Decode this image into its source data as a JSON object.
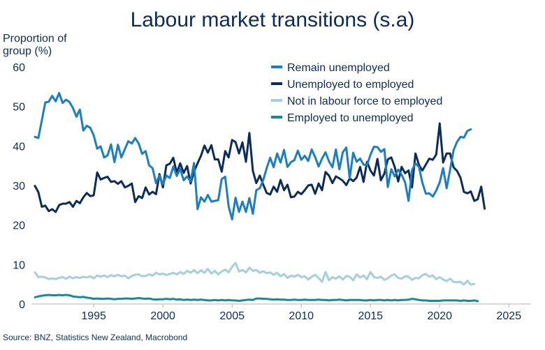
{
  "chart_data": {
    "type": "line",
    "title": "Labour market transitions (s.a)",
    "ylabel_lines": [
      "Proportion of",
      "group (%)"
    ],
    "source": "Source: BNZ, Statistics New Zealand, Macrobond",
    "xlim": [
      1990.5,
      2026.6
    ],
    "ylim": [
      0,
      60
    ],
    "yticks": [
      0,
      10,
      20,
      30,
      40,
      50,
      60
    ],
    "xticks": [
      1995,
      2000,
      2005,
      2010,
      2015,
      2020,
      2025
    ],
    "legend_position": "top-right",
    "grid": false,
    "series": [
      {
        "name": "Remain unemployed",
        "color": "#1b7ec2",
        "x_start": 1990.75,
        "x_step": 0.25,
        "values": [
          42.3,
          42.0,
          46.5,
          51.0,
          51.2,
          52.7,
          51.3,
          53.4,
          50.9,
          51.7,
          51.1,
          49.6,
          47.4,
          49.2,
          43.9,
          45.1,
          44.6,
          42.7,
          39.3,
          39.9,
          37.1,
          37.6,
          40.4,
          35.9,
          40.3,
          37.1,
          39.2,
          41.2,
          40.6,
          42.0,
          40.6,
          38.0,
          38.7,
          35.1,
          34.4,
          30.6,
          32.5,
          30.3,
          32.5,
          31.9,
          34.8,
          32.4,
          34.2,
          31.3,
          32.3,
          31.0,
          35.7,
          24.0,
          27.0,
          25.9,
          27.6,
          25.9,
          26.1,
          26.3,
          31.6,
          32.2,
          24.7,
          21.4,
          26.9,
          23.3,
          25.9,
          23.3,
          26.8,
          22.8,
          28.8,
          29.3,
          31.4,
          34.4,
          37.0,
          34.6,
          38.1,
          35.8,
          39.0,
          34.7,
          35.9,
          36.4,
          38.8,
          36.5,
          37.5,
          36.2,
          39.1,
          37.2,
          34.8,
          36.8,
          38.4,
          36.1,
          34.6,
          39.1,
          34.1,
          38.4,
          39.6,
          31.8,
          38.3,
          36.0,
          36.8,
          35.3,
          35.1,
          37.8,
          39.8,
          39.7,
          38.5,
          39.2,
          29.6,
          34.1,
          32.3,
          34.0,
          32.7,
          30.8,
          26.1,
          33.9,
          35.6,
          34.7,
          30.7,
          27.9,
          28.0,
          27.2,
          28.7,
          30.8,
          34.4,
          29.3,
          33.9,
          38.9,
          41.0,
          42.3,
          42.1,
          43.8,
          44.2
        ]
      },
      {
        "name": "Unemployed to employed",
        "color": "#0b2c5a",
        "x_start": 1990.75,
        "x_step": 0.25,
        "values": [
          29.9,
          28.3,
          24.6,
          24.9,
          23.5,
          24.0,
          23.3,
          25.0,
          25.4,
          25.4,
          25.8,
          24.6,
          26.1,
          25.5,
          27.0,
          28.1,
          27.3,
          27.5,
          33.3,
          31.5,
          31.9,
          32.2,
          30.9,
          31.1,
          30.4,
          31.1,
          29.5,
          29.9,
          30.5,
          25.8,
          27.3,
          26.8,
          29.5,
          27.7,
          28.4,
          27.8,
          32.9,
          29.5,
          35.1,
          35.5,
          37.0,
          33.2,
          35.6,
          33.2,
          34.9,
          30.5,
          33.5,
          35.6,
          37.5,
          40.1,
          38.3,
          40.2,
          36.6,
          36.6,
          33.5,
          38.7,
          37.1,
          41.5,
          41.0,
          38.1,
          40.9,
          36.0,
          43.3,
          33.7,
          30.6,
          32.5,
          30.2,
          28.1,
          27.7,
          29.7,
          28.4,
          31.4,
          28.8,
          30.2,
          27.0,
          27.2,
          28.4,
          27.8,
          28.8,
          30.0,
          30.2,
          27.9,
          30.5,
          28.8,
          33.4,
          32.5,
          30.6,
          32.3,
          31.8,
          31.2,
          30.1,
          31.8,
          31.1,
          32.0,
          34.7,
          30.9,
          36.0,
          33.8,
          32.5,
          36.7,
          31.3,
          33.0,
          36.6,
          37.1,
          34.7,
          31.0,
          34.7,
          33.1,
          33.8,
          29.5,
          38.1,
          35.2,
          33.8,
          35.3,
          36.8,
          36.5,
          37.8,
          45.7,
          35.8,
          38.1,
          38.1,
          34.6,
          33.7,
          32.0,
          28.4,
          28.0,
          28.5,
          26.1,
          26.5,
          29.7,
          24.1
        ]
      },
      {
        "name": "Not in labour force to employed",
        "color": "#a6cfdc",
        "x_start": 1990.75,
        "x_step": 0.25,
        "values": [
          8.0,
          6.8,
          6.9,
          6.7,
          6.3,
          6.5,
          6.3,
          6.6,
          6.8,
          6.4,
          6.9,
          6.5,
          6.8,
          6.6,
          6.9,
          6.7,
          7.0,
          6.5,
          7.2,
          6.9,
          7.2,
          6.8,
          7.3,
          7.0,
          7.4,
          7.0,
          7.2,
          6.5,
          7.1,
          7.4,
          7.5,
          7.0,
          7.1,
          7.5,
          7.2,
          7.9,
          7.5,
          7.7,
          7.3,
          7.6,
          7.9,
          7.5,
          8.1,
          7.6,
          8.4,
          7.9,
          8.6,
          7.8,
          8.5,
          7.9,
          8.9,
          7.7,
          8.4,
          7.5,
          8.2,
          8.7,
          8.0,
          9.4,
          10.4,
          8.2,
          8.6,
          8.0,
          9.2,
          8.4,
          8.6,
          7.9,
          8.3,
          7.8,
          8.0,
          7.4,
          7.9,
          7.0,
          7.6,
          6.6,
          7.2,
          6.9,
          7.4,
          6.8,
          7.0,
          6.2,
          6.9,
          7.4,
          6.6,
          5.6,
          8.1,
          6.0,
          6.8,
          6.4,
          7.0,
          6.2,
          7.1,
          6.9,
          6.0,
          7.5,
          6.7,
          7.2,
          6.3,
          8.1,
          6.8,
          6.6,
          6.9,
          6.1,
          6.5,
          7.2,
          7.5,
          6.6,
          6.4,
          7.0,
          6.9,
          6.1,
          6.6,
          6.5,
          7.3,
          7.6,
          6.9,
          7.2,
          6.3,
          6.8,
          6.2,
          5.8,
          6.4,
          5.6,
          5.5,
          5.6,
          4.9,
          5.9,
          4.9,
          5.1
        ]
      },
      {
        "name": "Employed to unemployed",
        "color": "#178a97",
        "x_start": 1990.75,
        "x_step": 0.25,
        "values": [
          1.7,
          1.9,
          2.1,
          2.2,
          2.3,
          2.2,
          2.2,
          2.3,
          2.2,
          2.3,
          2.2,
          1.9,
          1.8,
          1.7,
          1.8,
          1.6,
          1.5,
          1.3,
          1.4,
          1.3,
          1.3,
          1.4,
          1.3,
          1.2,
          1.3,
          1.3,
          1.4,
          1.4,
          1.3,
          1.4,
          1.5,
          1.4,
          1.3,
          1.4,
          1.2,
          1.1,
          1.2,
          1.2,
          1.3,
          1.2,
          1.3,
          1.1,
          1.2,
          1.0,
          1.1,
          1.0,
          1.1,
          1.0,
          1.1,
          1.0,
          0.9,
          0.9,
          1.0,
          0.9,
          1.0,
          0.9,
          1.0,
          0.9,
          0.9,
          0.8,
          0.9,
          1.0,
          1.1,
          1.0,
          1.4,
          1.4,
          1.3,
          1.3,
          1.2,
          1.1,
          1.2,
          1.1,
          1.1,
          1.0,
          1.0,
          1.1,
          1.0,
          1.0,
          1.1,
          1.0,
          1.0,
          1.0,
          1.1,
          1.0,
          1.0,
          0.9,
          1.0,
          1.0,
          1.1,
          1.0,
          0.9,
          1.0,
          1.0,
          1.0,
          1.0,
          0.9,
          0.9,
          1.0,
          0.9,
          1.0,
          1.0,
          0.9,
          1.0,
          0.9,
          1.0,
          0.9,
          1.0,
          1.0,
          1.1,
          1.3,
          1.2,
          1.0,
          0.9,
          0.9,
          0.8,
          0.8,
          0.8,
          0.8,
          0.9,
          0.9,
          0.9,
          0.9,
          0.9,
          0.8,
          0.9,
          0.8,
          0.8,
          0.9,
          0.7
        ]
      }
    ]
  }
}
